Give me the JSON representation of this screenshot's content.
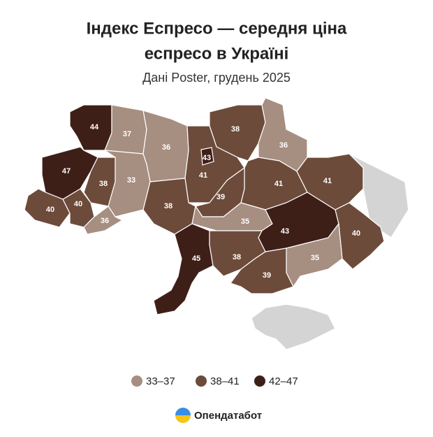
{
  "header": {
    "title_lines": [
      "Індекс Еспресо — середня ціна",
      "еспресо в Україні"
    ],
    "subtitle": "Дані Poster, грудень 2025"
  },
  "map": {
    "type": "choropleth",
    "no_data_color": "#d4d4d4",
    "regions": [
      {
        "value": 44
      },
      {
        "value": 37
      },
      {
        "value": 36
      },
      {
        "value": 43
      },
      {
        "value": 38
      },
      {
        "value": 36
      },
      {
        "value": 47
      },
      {
        "value": 38
      },
      {
        "value": 33
      },
      {
        "value": 41
      },
      {
        "value": 41
      },
      {
        "value": 41
      },
      {
        "value": 39
      },
      {
        "value": 40
      },
      {
        "value": 40
      },
      {
        "value": 38
      },
      {
        "value": 36
      },
      {
        "value": 35
      },
      {
        "value": 43
      },
      {
        "value": 40
      },
      {
        "value": 45
      },
      {
        "value": 38
      },
      {
        "value": 35
      },
      {
        "value": 39
      }
    ],
    "legend": [
      {
        "label": "33–37",
        "min": 33,
        "max": 37,
        "color": "#a68e81"
      },
      {
        "label": "38–41",
        "min": 38,
        "max": 41,
        "color": "#6d4b3a"
      },
      {
        "label": "42–47",
        "min": 42,
        "max": 47,
        "color": "#3e1f18"
      }
    ]
  },
  "footer": {
    "brand": "Опендатабот"
  }
}
